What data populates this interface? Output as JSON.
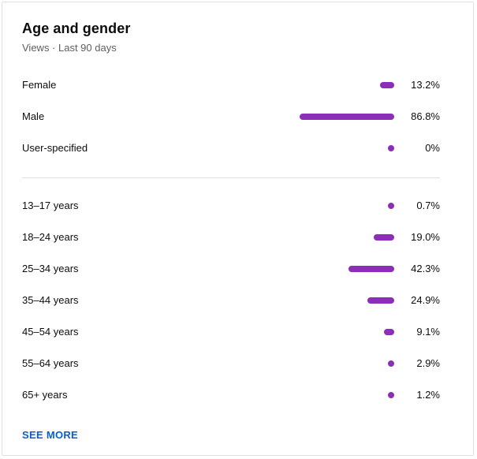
{
  "card": {
    "title": "Age and gender",
    "subtitle": "Views · Last 90 days",
    "bar_color": "#8a2fb6",
    "link_color": "#065fd4"
  },
  "gender": [
    {
      "label": "Female",
      "value": "13.2%",
      "percent": 13.2
    },
    {
      "label": "Male",
      "value": "86.8%",
      "percent": 86.8
    },
    {
      "label": "User-specified",
      "value": "0%",
      "percent": 0
    }
  ],
  "age": [
    {
      "label": "13–17 years",
      "value": "0.7%",
      "percent": 0.7
    },
    {
      "label": "18–24 years",
      "value": "19.0%",
      "percent": 19.0
    },
    {
      "label": "25–34 years",
      "value": "42.3%",
      "percent": 42.3
    },
    {
      "label": "35–44 years",
      "value": "24.9%",
      "percent": 24.9
    },
    {
      "label": "45–54 years",
      "value": "9.1%",
      "percent": 9.1
    },
    {
      "label": "55–64 years",
      "value": "2.9%",
      "percent": 2.9
    },
    {
      "label": "65+ years",
      "value": "1.2%",
      "percent": 1.2
    }
  ],
  "footer": {
    "see_more_label": "SEE MORE"
  }
}
